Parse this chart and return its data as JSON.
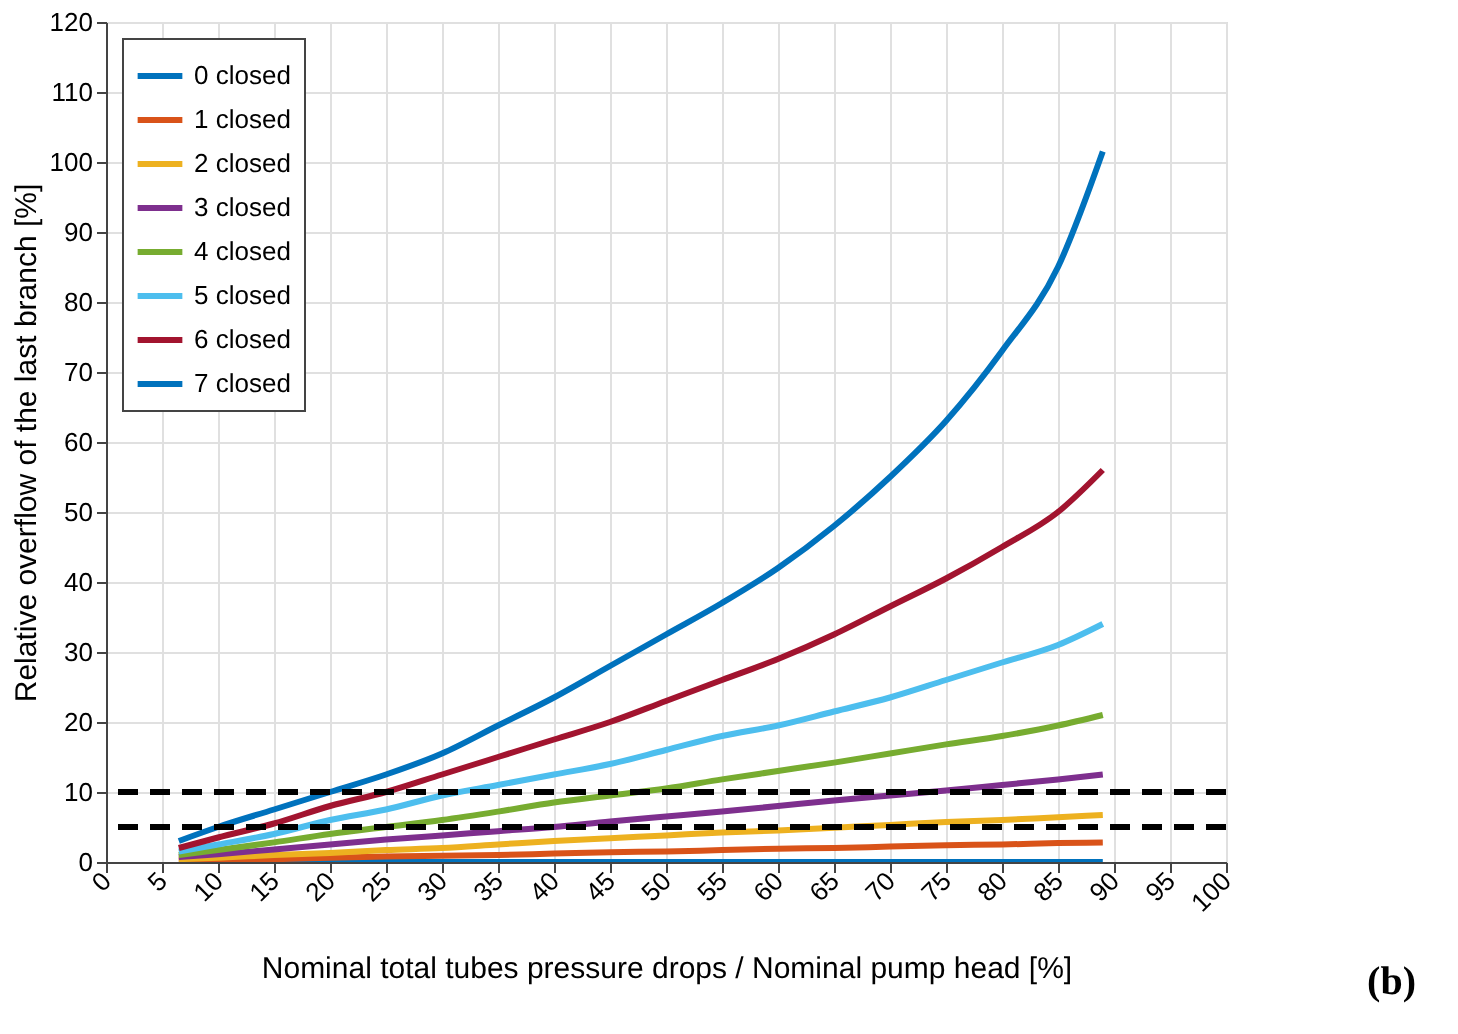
{
  "chart_data": {
    "type": "line",
    "xlabel": "Nominal total tubes pressure drops / Nominal pump head [%]",
    "ylabel": "Relative overflow of the last branch [%]",
    "annotations": [
      "(b)"
    ],
    "x": [
      6.5,
      10,
      15,
      20,
      25,
      30,
      35,
      40,
      45,
      50,
      55,
      60,
      65,
      70,
      75,
      80,
      85,
      89
    ],
    "series": [
      {
        "name": "0 closed",
        "color": "#0072bd",
        "values": [
          null,
          null,
          0,
          0,
          0,
          0,
          0,
          0,
          0,
          0,
          0,
          0,
          0,
          0,
          0,
          0,
          0,
          0
        ]
      },
      {
        "name": "1 closed",
        "color": "#d95319",
        "values": [
          0.2,
          0.3,
          0.4,
          0.6,
          0.8,
          0.9,
          1,
          1.2,
          1.4,
          1.5,
          1.7,
          1.9,
          2,
          2.2,
          2.4,
          2.5,
          2.7,
          2.8
        ]
      },
      {
        "name": "2 closed",
        "color": "#edb120",
        "values": [
          0.4,
          0.6,
          1,
          1.3,
          1.7,
          2,
          2.5,
          3,
          3.4,
          3.8,
          4.2,
          4.5,
          4.9,
          5.3,
          5.7,
          6,
          6.4,
          6.7
        ]
      },
      {
        "name": "3 closed",
        "color": "#7e2f8e",
        "values": [
          0.7,
          1.1,
          1.8,
          2.5,
          3.2,
          3.8,
          4.4,
          5,
          5.8,
          6.5,
          7.2,
          8,
          8.8,
          9.5,
          10.2,
          11,
          11.8,
          12.5
        ]
      },
      {
        "name": "4 closed",
        "color": "#77ac30",
        "values": [
          1,
          1.7,
          2.8,
          4,
          5,
          6,
          7.2,
          8.5,
          9.5,
          10.5,
          11.8,
          13,
          14.2,
          15.5,
          16.8,
          18,
          19.5,
          21
        ]
      },
      {
        "name": "5 closed",
        "color": "#4dbeee",
        "values": [
          1.5,
          2.5,
          4,
          6,
          7.5,
          9.5,
          11,
          12.5,
          14,
          16,
          18,
          19.5,
          21.5,
          23.5,
          26,
          28.5,
          31,
          34
        ]
      },
      {
        "name": "6 closed",
        "color": "#a2142f",
        "values": [
          2,
          3.5,
          5.5,
          8,
          10,
          12.5,
          15,
          17.5,
          20,
          23,
          26,
          29,
          32.5,
          36.5,
          40.5,
          45,
          50,
          56
        ]
      },
      {
        "name": "7 closed",
        "color": "#0072bd",
        "values": [
          3,
          5,
          7.5,
          10,
          12.5,
          15.5,
          19.5,
          23.5,
          28,
          32.5,
          37,
          42,
          48,
          55,
          63,
          73,
          85,
          101.5
        ]
      }
    ],
    "xlim": [
      0,
      100
    ],
    "xticks": [
      0,
      5,
      10,
      15,
      20,
      25,
      30,
      35,
      40,
      45,
      50,
      55,
      60,
      65,
      70,
      75,
      80,
      85,
      90,
      95,
      100
    ],
    "ylim": [
      0,
      120
    ],
    "yticks": [
      0,
      10,
      20,
      30,
      40,
      50,
      60,
      70,
      80,
      90,
      100,
      110,
      120
    ],
    "ref_lines": [
      {
        "axis": "y",
        "value": 10,
        "color": "#000000",
        "line_style": "dashed"
      },
      {
        "axis": "y",
        "value": 5,
        "color": "#000000",
        "line_style": "dashed"
      }
    ],
    "grid": true,
    "legend": "top left"
  }
}
